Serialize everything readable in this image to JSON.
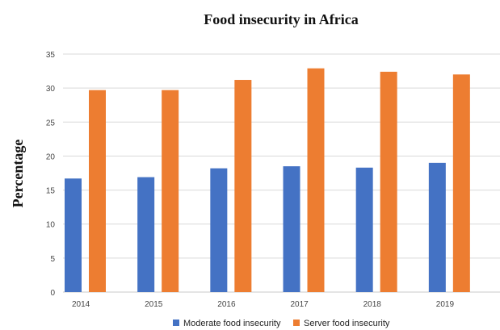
{
  "chart_data": {
    "type": "bar",
    "title": "Food insecurity in Africa",
    "xlabel": "",
    "ylabel": "Percentage",
    "categories": [
      "2014",
      "2015",
      "2016",
      "2017",
      "2018",
      "2019"
    ],
    "series": [
      {
        "name": "Moderate food insecurity",
        "color": "#4472C4",
        "values": [
          16.7,
          16.9,
          18.2,
          18.5,
          18.3,
          19.0
        ]
      },
      {
        "name": "Server food insecurity",
        "color": "#ED7D31",
        "values": [
          29.7,
          29.7,
          31.2,
          32.9,
          32.4,
          32.0
        ]
      }
    ],
    "ylim": [
      0,
      35
    ],
    "yticks": [
      0,
      5,
      10,
      15,
      20,
      25,
      30,
      35
    ],
    "grid": true,
    "legend_position": "bottom"
  }
}
